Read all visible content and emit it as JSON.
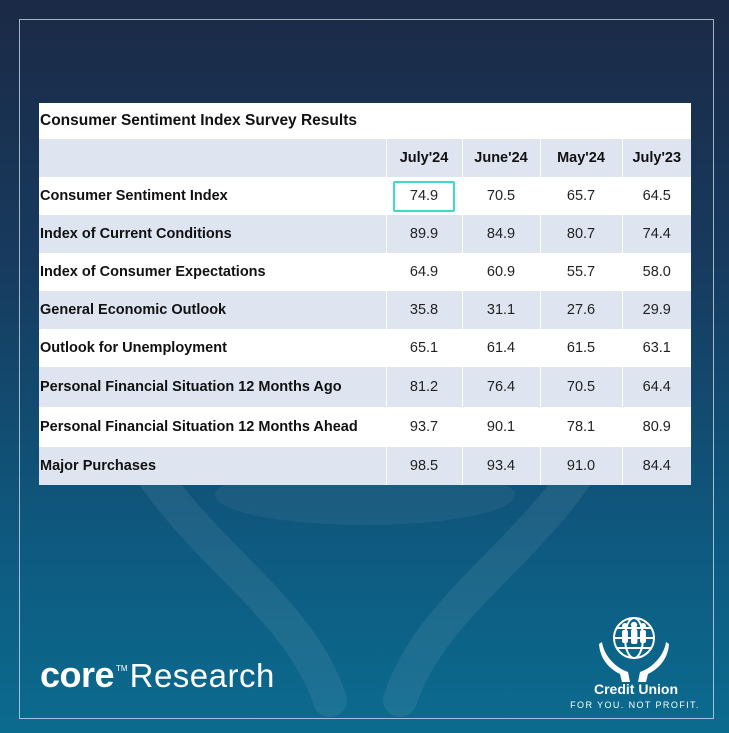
{
  "chart_data": {
    "type": "table",
    "title": "Consumer Sentiment Index Survey Results",
    "columns": [
      "July'24",
      "June'24",
      "May'24",
      "July'23"
    ],
    "rows": [
      {
        "label": "Consumer Sentiment Index",
        "values": [
          "74.9",
          "70.5",
          "65.7",
          "64.5"
        ]
      },
      {
        "label": "Index of Current Conditions",
        "values": [
          "89.9",
          "84.9",
          "80.7",
          "74.4"
        ]
      },
      {
        "label": "Index of Consumer Expectations",
        "values": [
          "64.9",
          "60.9",
          "55.7",
          "58.0"
        ]
      },
      {
        "label": "General Economic Outlook",
        "values": [
          "35.8",
          "31.1",
          "27.6",
          "29.9"
        ]
      },
      {
        "label": "Outlook for Unemployment",
        "values": [
          "65.1",
          "61.4",
          "61.5",
          "63.1"
        ]
      },
      {
        "label": "Personal Financial Situation 12 Months Ago",
        "values": [
          "81.2",
          "76.4",
          "70.5",
          "64.4"
        ]
      },
      {
        "label": "Personal Financial Situation 12 Months Ahead",
        "values": [
          "93.7",
          "90.1",
          "78.1",
          "80.9"
        ]
      },
      {
        "label": "Major Purchases",
        "values": [
          "98.5",
          "93.4",
          "91.0",
          "84.4"
        ]
      }
    ],
    "highlighted_cell": {
      "row": 0,
      "column": 0
    },
    "highlight_color": "#3fd9c7",
    "header_shade_color": "#dfe4f1"
  },
  "branding": {
    "core": "core",
    "tm": "TM",
    "research": "Research",
    "cu_name": "Credit Union",
    "cu_tagline": "FOR YOU. NOT PROFIT.",
    "icons": [
      "credit-union-hands-globe-icon"
    ]
  }
}
